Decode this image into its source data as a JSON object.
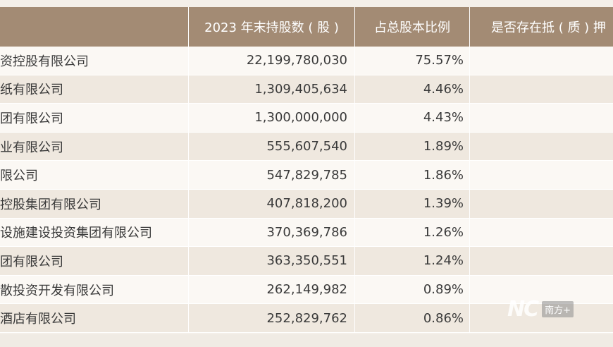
{
  "header": {
    "col1": "",
    "col2": "2023 年末持股数 ( 股 )",
    "col3": "占总股本比例",
    "col4": "是否存在抵 ( 质 ) 押"
  },
  "rows": [
    {
      "name": "资控股有限公司",
      "shares": "22,199,780,030",
      "ratio": "75.57%",
      "pledge": ""
    },
    {
      "name": "纸有限公司",
      "shares": "1,309,405,634",
      "ratio": "4.46%",
      "pledge": ""
    },
    {
      "name": "团有限公司",
      "shares": "1,300,000,000",
      "ratio": "4.43%",
      "pledge": ""
    },
    {
      "name": "业有限公司",
      "shares": "555,607,540",
      "ratio": "1.89%",
      "pledge": ""
    },
    {
      "name": "限公司",
      "shares": "547,829,785",
      "ratio": "1.86%",
      "pledge": ""
    },
    {
      "name": "控股集团有限公司",
      "shares": "407,818,200",
      "ratio": "1.39%",
      "pledge": ""
    },
    {
      "name": "设施建设投资集团有限公司",
      "shares": "370,369,786",
      "ratio": "1.26%",
      "pledge": ""
    },
    {
      "name": "团有限公司",
      "shares": "363,350,551",
      "ratio": "1.24%",
      "pledge": ""
    },
    {
      "name": "散投资开发有限公司",
      "shares": "262,149,982",
      "ratio": "0.89%",
      "pledge": ""
    },
    {
      "name": "酒店有限公司",
      "shares": "252,829,762",
      "ratio": "0.86%",
      "pledge": ""
    }
  ],
  "watermark": {
    "logo": "NC",
    "text": "南方+"
  }
}
